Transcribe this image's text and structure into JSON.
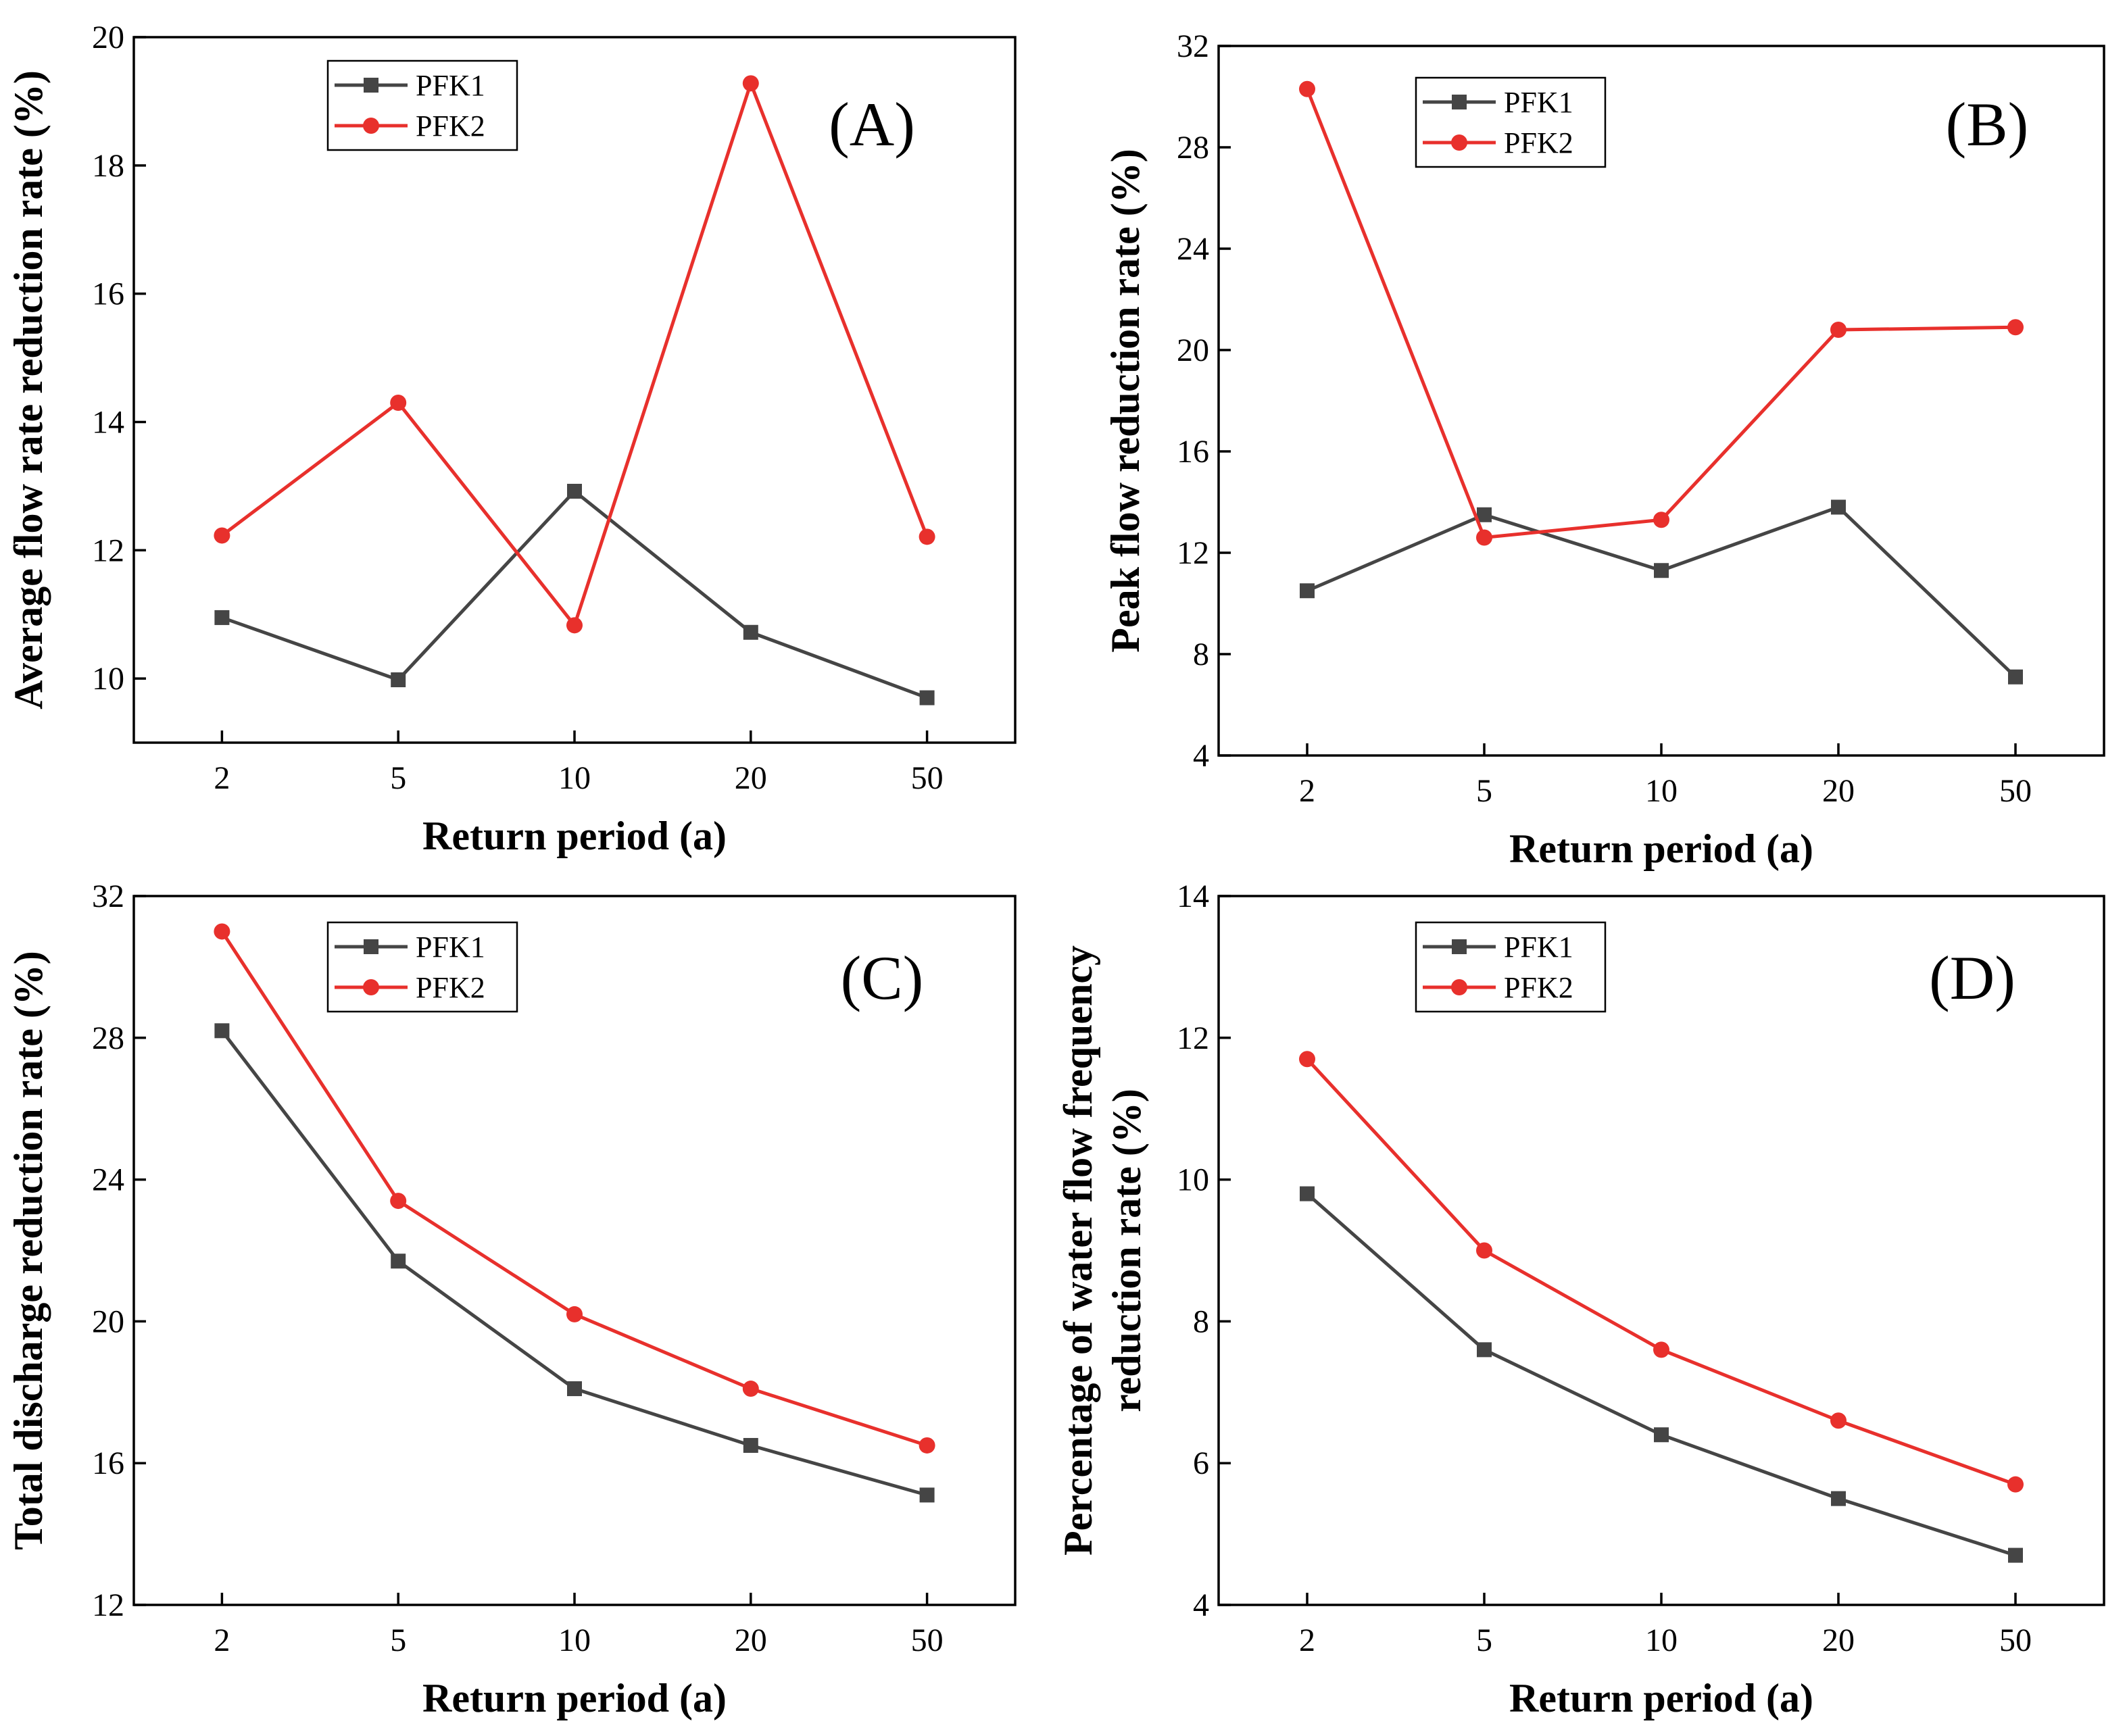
{
  "figure": {
    "panels_order": [
      "A",
      "B",
      "C",
      "D"
    ]
  },
  "colors": {
    "PFK1": "#454545",
    "PFK2": "#e8302c"
  },
  "chart_data": [
    {
      "type": "line",
      "panel": "A",
      "tag": "(A)",
      "categories": [
        "2",
        "5",
        "10",
        "20",
        "50"
      ],
      "xlabel": "Return period (a)",
      "ylabel": "Average flow rate reduction rate (%)",
      "ylim": [
        9,
        20
      ],
      "yticks": [
        10,
        12,
        14,
        16,
        18,
        20
      ],
      "legend_position": "top-left",
      "series": [
        {
          "name": "PFK1",
          "values": [
            10.95,
            9.98,
            12.92,
            10.72,
            9.7
          ]
        },
        {
          "name": "PFK2",
          "values": [
            12.23,
            14.3,
            10.83,
            19.28,
            12.21
          ]
        }
      ]
    },
    {
      "type": "line",
      "panel": "B",
      "tag": "(B)",
      "categories": [
        "2",
        "5",
        "10",
        "20",
        "50"
      ],
      "xlabel": "Return period (a)",
      "ylabel": "Peak flow reduction rate (%)",
      "ylim": [
        4,
        32
      ],
      "yticks": [
        4,
        8,
        12,
        16,
        20,
        24,
        28,
        32
      ],
      "legend_position": "top-left",
      "series": [
        {
          "name": "PFK1",
          "values": [
            10.5,
            13.5,
            11.3,
            13.8,
            7.1
          ]
        },
        {
          "name": "PFK2",
          "values": [
            30.3,
            12.6,
            13.3,
            20.8,
            20.9
          ]
        }
      ]
    },
    {
      "type": "line",
      "panel": "C",
      "tag": "(C)",
      "categories": [
        "2",
        "5",
        "10",
        "20",
        "50"
      ],
      "xlabel": "Return period (a)",
      "ylabel": "Total discharge reduction rate (%)",
      "ylim": [
        12,
        32
      ],
      "yticks": [
        12,
        16,
        20,
        24,
        28,
        32
      ],
      "legend_position": "top-left",
      "series": [
        {
          "name": "PFK1",
          "values": [
            28.2,
            21.7,
            18.1,
            16.5,
            15.1
          ]
        },
        {
          "name": "PFK2",
          "values": [
            31.0,
            23.4,
            20.2,
            18.1,
            16.5
          ]
        }
      ]
    },
    {
      "type": "line",
      "panel": "D",
      "tag": "(D)",
      "categories": [
        "2",
        "5",
        "10",
        "20",
        "50"
      ],
      "xlabel": "Return period (a)",
      "ylabel": [
        "Percentage of water flow frequency",
        "reduction rate (%)"
      ],
      "ylim": [
        4,
        14
      ],
      "yticks": [
        4,
        6,
        8,
        10,
        12,
        14
      ],
      "legend_position": "top-left",
      "series": [
        {
          "name": "PFK1",
          "values": [
            9.8,
            7.6,
            6.4,
            5.5,
            4.7
          ]
        },
        {
          "name": "PFK2",
          "values": [
            11.7,
            9.0,
            7.6,
            6.6,
            5.7
          ]
        }
      ]
    }
  ]
}
